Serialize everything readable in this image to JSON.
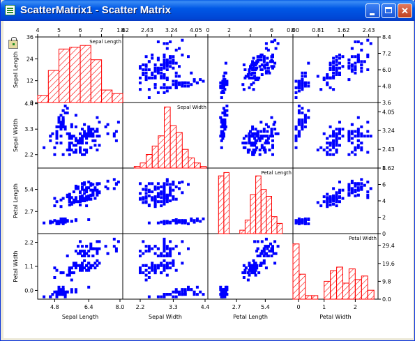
{
  "window": {
    "title": "ScatterMatrix1 - Scatter Matrix",
    "app_icon": "origin-graph-icon",
    "lock_icon": "lock-icon",
    "buttons": {
      "minimize": "minimize-icon",
      "maximize": "maximize-icon",
      "close": "close-icon"
    }
  },
  "colors": {
    "points": "#0000ff",
    "histogram": "#ff0000",
    "frame": "#000000",
    "background": "#ffffff"
  },
  "chart_data": {
    "type": "scatter",
    "variables": [
      "Sepal Length",
      "Sepal Width",
      "Petal Length",
      "Petal Width"
    ],
    "top_ticks": [
      [
        "4",
        "5",
        "6",
        "7",
        "8"
      ],
      [
        "1.62",
        "2.43",
        "3.24",
        "4.05"
      ],
      [
        "0",
        "2",
        "4",
        "6",
        "8"
      ],
      [
        "0.00",
        "0.81",
        "1.62",
        "2.43"
      ]
    ],
    "top_ticks_vals": [
      [
        4,
        5,
        6,
        7,
        8
      ],
      [
        1.62,
        2.43,
        3.24,
        4.05
      ],
      [
        0,
        2,
        4,
        6,
        8
      ],
      [
        0,
        0.81,
        1.62,
        2.43
      ]
    ],
    "ranges": [
      [
        4,
        8
      ],
      [
        1.62,
        4.45
      ],
      [
        0,
        8
      ],
      [
        0,
        2.73
      ]
    ],
    "bottom_ticks": [
      [
        "4.8",
        "6.4",
        "8.0"
      ],
      [
        "2.2",
        "3.3",
        "4.4"
      ],
      [
        "2.7",
        "5.4"
      ],
      [
        "0",
        "1",
        "2"
      ]
    ],
    "bottom_ticks_vals": [
      [
        4.8,
        6.4,
        8.0
      ],
      [
        2.2,
        3.3,
        4.4
      ],
      [
        2.7,
        5.4
      ],
      [
        0,
        1,
        2
      ]
    ],
    "left_ticks": [
      [
        "0",
        "12",
        "24",
        "36"
      ],
      [
        "2.2",
        "3.3",
        "4.4"
      ],
      [
        "2.7",
        "5.4"
      ],
      [
        "0.0",
        "1.1",
        "2.2"
      ]
    ],
    "left_ticks_vals": [
      [
        0,
        12,
        24,
        36
      ],
      [
        2.2,
        3.3,
        4.4
      ],
      [
        2.7,
        5.4
      ],
      [
        0.0,
        1.1,
        2.2
      ]
    ],
    "left_ranges": [
      [
        0,
        36
      ],
      [
        1.62,
        4.45
      ],
      [
        0,
        8
      ],
      [
        -0.4,
        2.6
      ]
    ],
    "right_ticks": [
      [
        "3.6",
        "4.8",
        "6.0",
        "7.2",
        "8.4"
      ],
      [
        "1.62",
        "2.43",
        "3.24",
        "4.05"
      ],
      [
        "0",
        "2",
        "4",
        "6",
        "8"
      ],
      [
        "0.0",
        "9.8",
        "19.6",
        "29.4"
      ]
    ],
    "right_ticks_vals": [
      [
        3.6,
        4.8,
        6.0,
        7.2,
        8.4
      ],
      [
        1.62,
        2.43,
        3.24,
        4.05
      ],
      [
        0,
        2,
        4,
        6,
        8
      ],
      [
        0,
        9.8,
        19.6,
        29.4
      ]
    ],
    "right_ranges": [
      [
        3.6,
        8.4
      ],
      [
        1.62,
        4.45
      ],
      [
        0,
        8
      ],
      [
        0,
        36
      ]
    ],
    "histograms": [
      {
        "variable": "Sepal Length",
        "bin_edges": [
          4.0,
          4.5,
          5.0,
          5.5,
          6.0,
          6.5,
          7.0,
          7.5,
          8.0
        ],
        "counts": [
          4,
          18,
          30,
          31,
          32,
          24,
          7,
          5
        ]
      },
      {
        "variable": "Sepal Width",
        "bin_edges": [
          2.0,
          2.2,
          2.4,
          2.6,
          2.8,
          3.0,
          3.2,
          3.4,
          3.6,
          3.8,
          4.0,
          4.2,
          4.4
        ],
        "counts": [
          1,
          3,
          8,
          13,
          19,
          36,
          25,
          21,
          11,
          6,
          3,
          1
        ]
      },
      {
        "variable": "Petal Length",
        "bin_edges": [
          1.0,
          1.5,
          2.0,
          2.5,
          3.0,
          3.5,
          4.0,
          4.5,
          5.0,
          5.5,
          6.0,
          6.5,
          7.0
        ],
        "counts": [
          34,
          36,
          0,
          0,
          2,
          8,
          23,
          34,
          26,
          22,
          10,
          6
        ]
      },
      {
        "variable": "Petal Width",
        "bin_edges": [
          0.0,
          0.2,
          0.4,
          0.6,
          0.8,
          1.0,
          1.2,
          1.4,
          1.6,
          1.8,
          2.0,
          2.2,
          2.4,
          2.6
        ],
        "counts": [
          31,
          14,
          2,
          2,
          0,
          10,
          16,
          18,
          9,
          17,
          11,
          13,
          5
        ]
      }
    ]
  }
}
